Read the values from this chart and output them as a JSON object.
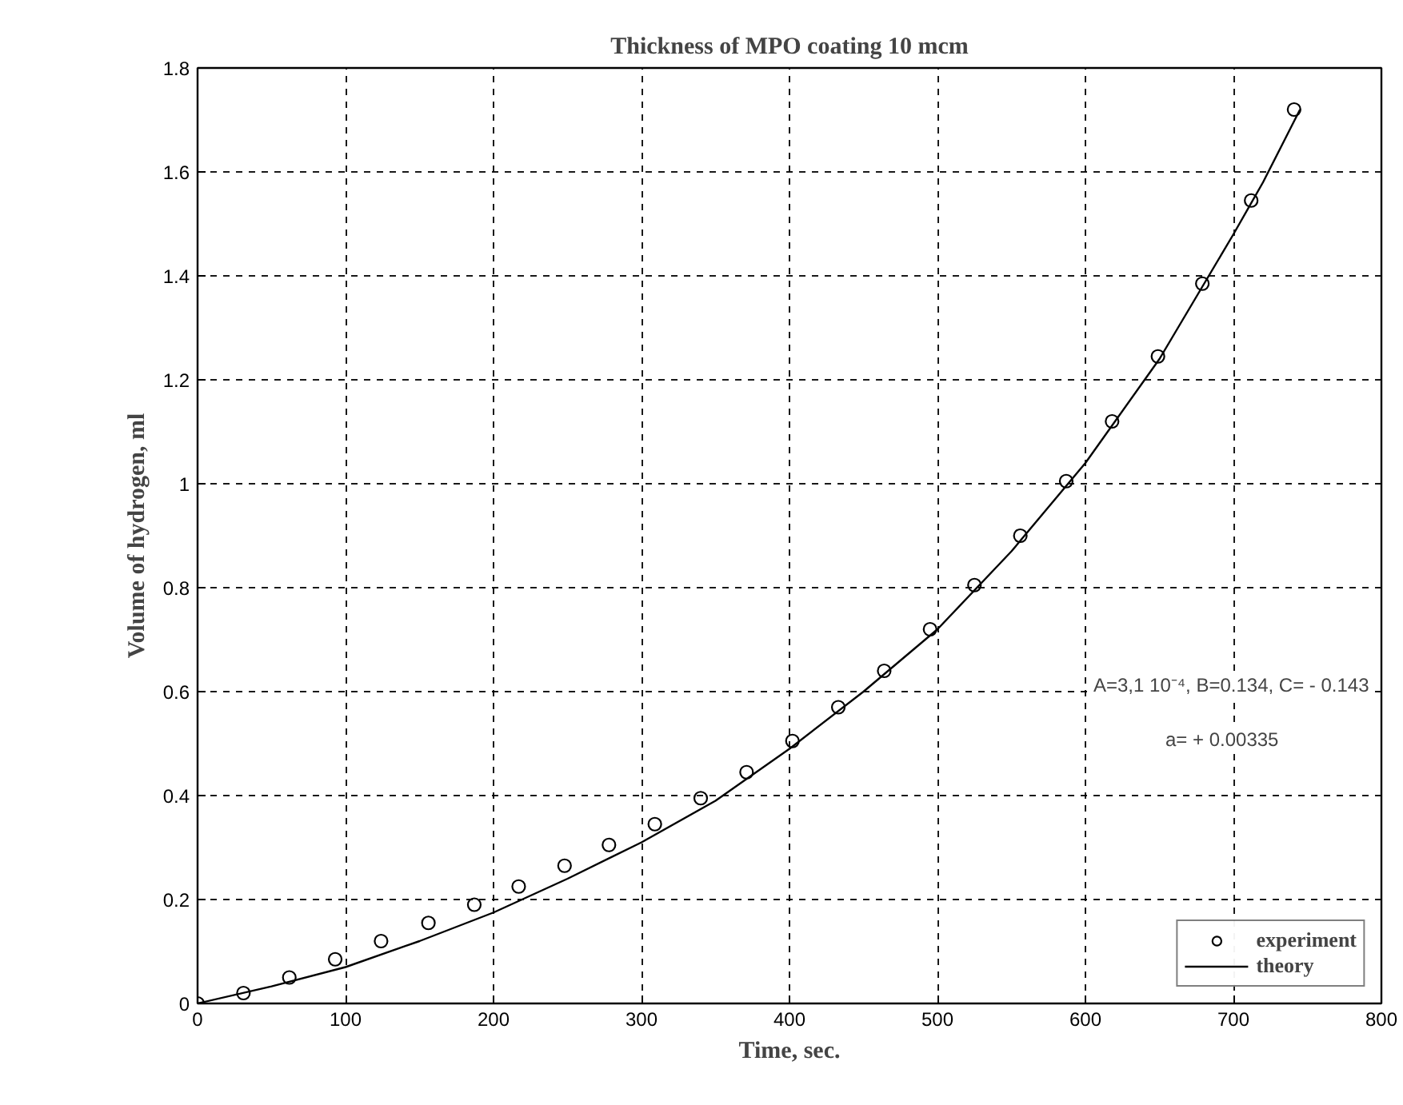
{
  "chart_data": {
    "type": "scatter",
    "title": "Thickness of MPO coating 10 mcm",
    "xlabel": "Time, sec.",
    "ylabel": "Volume of hydrogen, ml",
    "xlim": [
      0,
      800
    ],
    "xticks": [
      0,
      100,
      200,
      300,
      400,
      500,
      600,
      700,
      800
    ],
    "ylim": [
      0,
      1.8
    ],
    "yticks": [
      0,
      {
        "value": 0.2,
        "label": "0.2"
      },
      {
        "value": 0.4,
        "label": "0.4"
      },
      {
        "value": 0.6,
        "label": "0.6"
      },
      {
        "value": 0.8,
        "label": "0.8"
      },
      1,
      {
        "value": 1.2,
        "label": "1.2"
      },
      {
        "value": 1.4,
        "label": "1.4"
      },
      {
        "value": 1.6,
        "label": "1.6"
      },
      {
        "value": 1.8,
        "label": "1.8"
      }
    ],
    "grid": true,
    "legend": "bottom right",
    "annotations": [
      "A=3,1 10⁻⁴, B=0.134, C= - 0.143",
      "a= + 0.00335"
    ],
    "series": [
      {
        "name": "experiment",
        "marker": "circle",
        "color": "#000000",
        "x": [
          0,
          31,
          62,
          93,
          124,
          156,
          187,
          217,
          248,
          278,
          309,
          340,
          371,
          402,
          433,
          464,
          495,
          525,
          556,
          587,
          618,
          649,
          679,
          712,
          741
        ],
        "values": [
          0,
          0.02,
          0.05,
          0.085,
          0.12,
          0.155,
          0.19,
          0.225,
          0.265,
          0.305,
          0.345,
          0.395,
          0.445,
          0.505,
          0.57,
          0.64,
          0.72,
          0.805,
          0.9,
          1.005,
          1.12,
          1.245,
          1.385,
          1.545,
          1.72
        ]
      },
      {
        "name": "theory",
        "type": "line",
        "color": "#000000",
        "line_style": "solid",
        "x": [
          0,
          50,
          100,
          150,
          200,
          250,
          300,
          350,
          400,
          450,
          500,
          550,
          600,
          650,
          700,
          720,
          745
        ],
        "values": [
          0,
          0.033,
          0.07,
          0.12,
          0.175,
          0.24,
          0.31,
          0.39,
          0.49,
          0.6,
          0.72,
          0.87,
          1.04,
          1.24,
          1.48,
          1.58,
          1.72
        ]
      }
    ]
  }
}
